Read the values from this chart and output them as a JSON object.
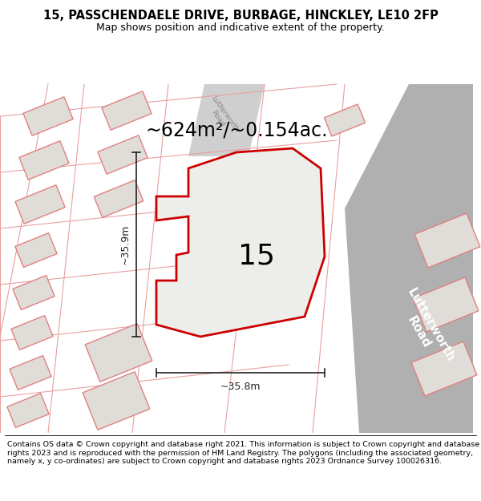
{
  "title_line1": "15, PASSCHENDAELE DRIVE, BURBAGE, HINCKLEY, LE10 2FP",
  "title_line2": "Map shows position and indicative extent of the property.",
  "footer_text": "Contains OS data © Crown copyright and database right 2021. This information is subject to Crown copyright and database rights 2023 and is reproduced with the permission of HM Land Registry. The polygons (including the associated geometry, namely x, y co-ordinates) are subject to Crown copyright and database rights 2023 Ordnance Survey 100026316.",
  "area_text": "~624m²/~0.154ac.",
  "width_label": "~35.8m",
  "height_label": "~35.9m",
  "plot_number": "15",
  "bg_color": "#f7f4f0",
  "plot_outline": "#cc0000",
  "road_gray": "#aaaaaa",
  "building_fill": "#e0ddd8",
  "building_edge": "#e08080",
  "street_color": "#e8a0a0",
  "dim_color": "#222222",
  "luth_road_top_color": "#c0bfbf",
  "title_fontsize": 10.5,
  "subtitle_fontsize": 9,
  "area_fontsize": 17,
  "plot_num_fontsize": 26,
  "dim_fontsize": 9,
  "footer_fontsize": 6.8
}
